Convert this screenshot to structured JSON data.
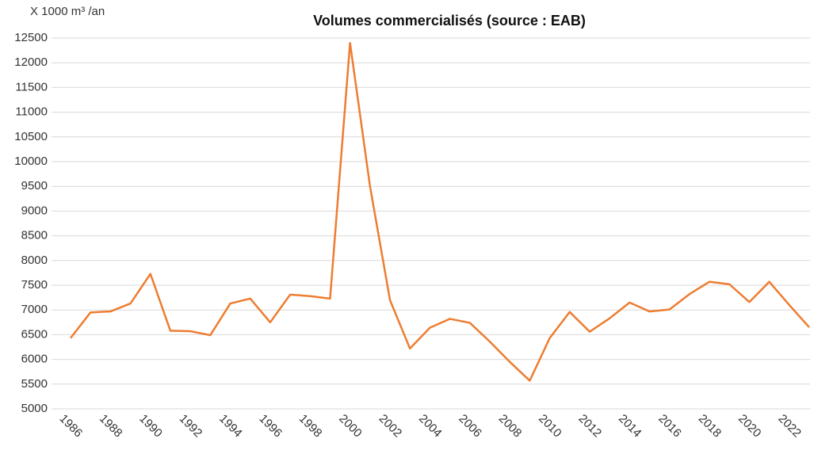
{
  "chart_data": {
    "type": "line",
    "title": "Volumes commercialisés (source : EAB)",
    "y_label": "X 1000 m³ /an",
    "x": [
      1986,
      1987,
      1988,
      1989,
      1990,
      1991,
      1992,
      1993,
      1994,
      1995,
      1996,
      1997,
      1998,
      1999,
      2000,
      2001,
      2002,
      2003,
      2004,
      2005,
      2006,
      2007,
      2008,
      2009,
      2010,
      2011,
      2012,
      2013,
      2014,
      2015,
      2016,
      2017,
      2018,
      2019,
      2020,
      2021,
      2022,
      2023
    ],
    "series": [
      {
        "name": "Volumes commercialisés",
        "color": "#ed7d31",
        "values": [
          6430,
          6950,
          6970,
          7130,
          7730,
          6580,
          6570,
          6490,
          7130,
          7230,
          6750,
          7310,
          7280,
          7230,
          12400,
          9500,
          7200,
          6220,
          6640,
          6820,
          6740,
          6360,
          5950,
          5570,
          6430,
          6960,
          6560,
          6830,
          7150,
          6970,
          7010,
          7320,
          7570,
          7520,
          7160,
          7570,
          7100,
          6650
        ]
      }
    ],
    "xlim": [
      1986,
      2023
    ],
    "xticks": [
      1986,
      1988,
      1990,
      1992,
      1994,
      1996,
      1998,
      2000,
      2002,
      2004,
      2006,
      2008,
      2010,
      2012,
      2014,
      2016,
      2018,
      2020,
      2022
    ],
    "ylim": [
      5000,
      12500
    ],
    "yticks": [
      5000,
      5500,
      6000,
      6500,
      7000,
      7500,
      8000,
      8500,
      9000,
      9500,
      10000,
      10500,
      11000,
      11500,
      12000,
      12500
    ],
    "grid": true
  }
}
